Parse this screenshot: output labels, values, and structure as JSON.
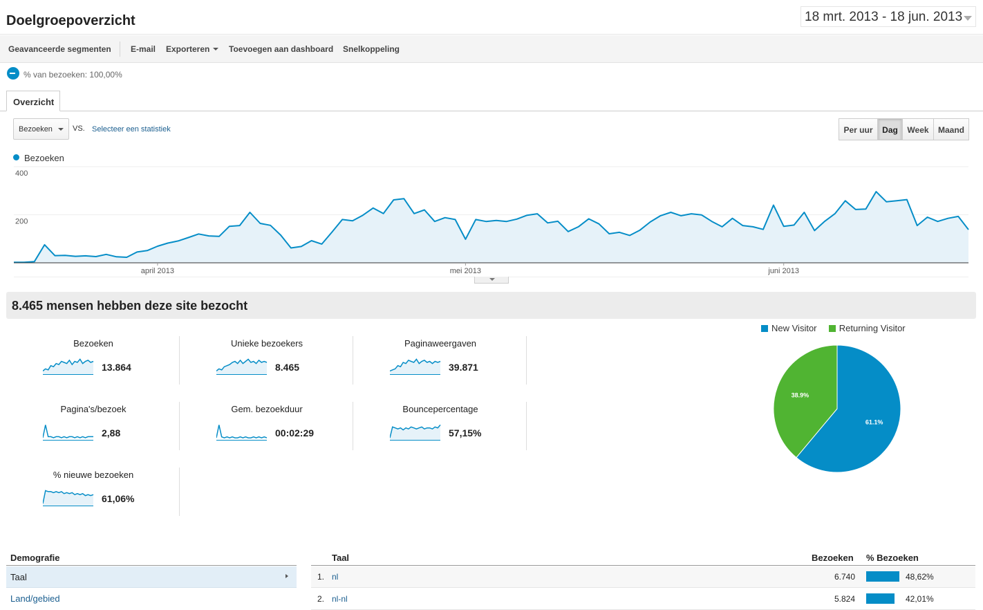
{
  "header": {
    "title": "Doelgroepoverzicht",
    "date_range": "18 mrt. 2013 - 18 jun. 2013"
  },
  "toolbar": {
    "advanced_segments": "Geavanceerde segmenten",
    "email": "E-mail",
    "export": "Exporteren",
    "add_dashboard": "Toevoegen aan dashboard",
    "shortcut": "Snelkoppeling"
  },
  "segment": {
    "label": "% van bezoeken: 100,00%",
    "color": "#058dc7"
  },
  "tabs": [
    {
      "label": "Overzicht",
      "active": true
    }
  ],
  "controls": {
    "metric": "Bezoeken",
    "vs": "VS.",
    "select_metric": "Selecteer een statistiek",
    "granularity": [
      {
        "label": "Per uur",
        "active": false
      },
      {
        "label": "Dag",
        "active": true
      },
      {
        "label": "Week",
        "active": false
      },
      {
        "label": "Maand",
        "active": false
      }
    ]
  },
  "chart_data": [
    {
      "type": "area",
      "series": [
        {
          "name": "Bezoeken",
          "color": "#058dc7",
          "values": [
            2,
            2,
            5,
            75,
            30,
            31,
            27,
            29,
            26,
            35,
            25,
            23,
            45,
            51,
            69,
            82,
            91,
            105,
            120,
            112,
            110,
            152,
            155,
            210,
            164,
            156,
            115,
            62,
            68,
            92,
            78,
            128,
            180,
            175,
            198,
            228,
            205,
            262,
            267,
            205,
            220,
            172,
            188,
            180,
            98,
            180,
            172,
            176,
            172,
            182,
            198,
            204,
            166,
            173,
            130,
            150,
            183,
            162,
            121,
            127,
            114,
            136,
            170,
            196,
            210,
            196,
            204,
            199,
            172,
            150,
            185,
            155,
            150,
            139,
            240,
            152,
            157,
            210,
            134,
            173,
            205,
            258,
            222,
            224,
            296,
            254,
            258,
            263,
            155,
            190,
            172,
            185,
            193,
            138
          ]
        }
      ],
      "x_labels": [
        "april 2013",
        "mei 2013",
        "juni 2013"
      ],
      "y_ticks": [
        200,
        400
      ],
      "ylim": [
        0,
        400
      ],
      "grid": true
    },
    {
      "type": "pie",
      "series": [
        {
          "name": "New Visitor",
          "value": 61.1,
          "label": "61.1%",
          "color": "#058dc7"
        },
        {
          "name": "Returning Visitor",
          "value": 38.9,
          "label": "38.9%",
          "color": "#50b432"
        }
      ],
      "legend": "top"
    }
  ],
  "summary": {
    "title": "8.465 mensen hebben deze site bezocht",
    "cards": [
      {
        "label": "Bezoeken",
        "value": "13.864",
        "spark": [
          3,
          5,
          4,
          8,
          7,
          10,
          9,
          12,
          11,
          10,
          13,
          9,
          12,
          11,
          14,
          10,
          12,
          13,
          11,
          12
        ],
        "fill": true
      },
      {
        "label": "Unieke bezoekers",
        "value": "8.465",
        "spark": [
          3,
          5,
          4,
          7,
          8,
          9,
          11,
          12,
          10,
          13,
          10,
          12,
          14,
          11,
          12,
          10,
          13,
          11,
          12,
          11
        ],
        "fill": true
      },
      {
        "label": "Paginaweergaven",
        "value": "39.871",
        "spark": [
          3,
          4,
          5,
          8,
          7,
          11,
          10,
          13,
          12,
          11,
          14,
          10,
          12,
          13,
          11,
          12,
          10,
          12,
          11,
          12
        ],
        "fill": true
      },
      {
        "label": "Pagina's/bezoek",
        "value": "2,88",
        "spark": [
          2,
          14,
          3,
          3,
          2,
          3,
          3,
          2,
          3,
          2,
          3,
          3,
          2,
          3,
          2,
          3,
          2,
          3,
          3,
          3
        ],
        "fill": false
      },
      {
        "label": "Gem. bezoekduur",
        "value": "00:02:29",
        "spark": [
          2,
          15,
          3,
          2,
          3,
          2,
          3,
          2,
          2,
          3,
          2,
          3,
          2,
          2,
          3,
          2,
          3,
          2,
          3,
          2
        ],
        "fill": false
      },
      {
        "label": "Bouncepercentage",
        "value": "57,15%",
        "spark": [
          2,
          13,
          12,
          11,
          12,
          10,
          12,
          11,
          13,
          12,
          11,
          12,
          13,
          11,
          12,
          12,
          11,
          13,
          12,
          15
        ],
        "fill": true
      },
      {
        "label": "% nieuwe bezoeken",
        "value": "61,06%",
        "spark": [
          2,
          15,
          14,
          14,
          13,
          14,
          13,
          14,
          12,
          13,
          12,
          13,
          11,
          12,
          11,
          12,
          10,
          11,
          10,
          11
        ],
        "fill": true
      }
    ]
  },
  "demographics": {
    "header": "Demografie",
    "items": [
      "Taal",
      "Land/gebied"
    ]
  },
  "table": {
    "columns": [
      "Taal",
      "Bezoeken",
      "% Bezoeken"
    ],
    "rows": [
      {
        "index": "1.",
        "name": "nl",
        "visits": "6.740",
        "pct": "48,62%",
        "pct_value": 48.62
      },
      {
        "index": "2.",
        "name": "nl-nl",
        "visits": "5.824",
        "pct": "42,01%",
        "pct_value": 42.01
      }
    ]
  }
}
